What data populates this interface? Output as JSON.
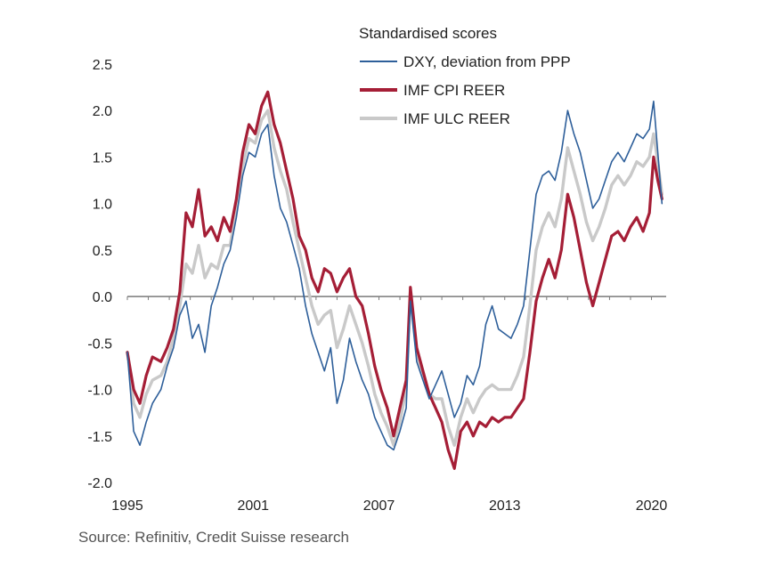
{
  "chart_data": {
    "type": "line",
    "title": "",
    "legend_title": "Standardised scores",
    "legend_position": "top-right",
    "xlabel": "",
    "ylabel": "",
    "xlim": [
      1995,
      2020.7
    ],
    "ylim": [
      -2.0,
      2.5
    ],
    "x_ticks": [
      1995,
      2001,
      2007,
      2013,
      2020
    ],
    "x_tick_labels": [
      "1995",
      "2001",
      "2007",
      "2013",
      "2020"
    ],
    "y_ticks": [
      2.5,
      2.0,
      1.5,
      1.0,
      0.5,
      0.0,
      -0.5,
      -1.0,
      -1.5,
      -2.0
    ],
    "y_tick_labels": [
      "2.5",
      "2.0",
      "1.5",
      "1.0",
      "0.5",
      "0.0",
      "-0.5",
      "-1.0",
      "-1.5",
      "-2.0"
    ],
    "grid": false,
    "zero_line": true,
    "series": [
      {
        "name": "DXY, deviation from PPP",
        "color": "#2e5f9a",
        "points": [
          [
            1995.0,
            -0.6
          ],
          [
            1995.3,
            -1.45
          ],
          [
            1995.6,
            -1.6
          ],
          [
            1995.9,
            -1.35
          ],
          [
            1996.2,
            -1.15
          ],
          [
            1996.6,
            -1.0
          ],
          [
            1996.9,
            -0.75
          ],
          [
            1997.2,
            -0.55
          ],
          [
            1997.5,
            -0.2
          ],
          [
            1997.8,
            -0.05
          ],
          [
            1998.1,
            -0.45
          ],
          [
            1998.4,
            -0.3
          ],
          [
            1998.7,
            -0.6
          ],
          [
            1999.0,
            -0.1
          ],
          [
            1999.3,
            0.1
          ],
          [
            1999.6,
            0.35
          ],
          [
            1999.9,
            0.5
          ],
          [
            2000.2,
            0.85
          ],
          [
            2000.5,
            1.3
          ],
          [
            2000.8,
            1.55
          ],
          [
            2001.1,
            1.5
          ],
          [
            2001.4,
            1.75
          ],
          [
            2001.7,
            1.85
          ],
          [
            2002.0,
            1.3
          ],
          [
            2002.3,
            0.95
          ],
          [
            2002.6,
            0.8
          ],
          [
            2002.9,
            0.55
          ],
          [
            2003.2,
            0.3
          ],
          [
            2003.5,
            -0.1
          ],
          [
            2003.8,
            -0.4
          ],
          [
            2004.1,
            -0.6
          ],
          [
            2004.4,
            -0.8
          ],
          [
            2004.7,
            -0.55
          ],
          [
            2005.0,
            -1.15
          ],
          [
            2005.3,
            -0.9
          ],
          [
            2005.6,
            -0.45
          ],
          [
            2005.9,
            -0.7
          ],
          [
            2006.2,
            -0.9
          ],
          [
            2006.5,
            -1.05
          ],
          [
            2006.8,
            -1.3
          ],
          [
            2007.1,
            -1.45
          ],
          [
            2007.4,
            -1.6
          ],
          [
            2007.7,
            -1.65
          ],
          [
            2008.0,
            -1.45
          ],
          [
            2008.3,
            -1.2
          ],
          [
            2008.5,
            -0.05
          ],
          [
            2008.8,
            -0.7
          ],
          [
            2009.1,
            -0.9
          ],
          [
            2009.4,
            -1.1
          ],
          [
            2009.7,
            -0.95
          ],
          [
            2010.0,
            -0.8
          ],
          [
            2010.3,
            -1.05
          ],
          [
            2010.6,
            -1.3
          ],
          [
            2010.9,
            -1.15
          ],
          [
            2011.2,
            -0.85
          ],
          [
            2011.5,
            -0.95
          ],
          [
            2011.8,
            -0.75
          ],
          [
            2012.1,
            -0.3
          ],
          [
            2012.4,
            -0.1
          ],
          [
            2012.7,
            -0.35
          ],
          [
            2013.0,
            -0.4
          ],
          [
            2013.3,
            -0.45
          ],
          [
            2013.6,
            -0.3
          ],
          [
            2013.9,
            -0.1
          ],
          [
            2014.2,
            0.5
          ],
          [
            2014.5,
            1.1
          ],
          [
            2014.8,
            1.3
          ],
          [
            2015.1,
            1.35
          ],
          [
            2015.4,
            1.25
          ],
          [
            2015.7,
            1.55
          ],
          [
            2016.0,
            2.0
          ],
          [
            2016.3,
            1.75
          ],
          [
            2016.6,
            1.55
          ],
          [
            2016.9,
            1.25
          ],
          [
            2017.2,
            0.95
          ],
          [
            2017.5,
            1.05
          ],
          [
            2017.8,
            1.25
          ],
          [
            2018.1,
            1.45
          ],
          [
            2018.4,
            1.55
          ],
          [
            2018.7,
            1.45
          ],
          [
            2019.0,
            1.6
          ],
          [
            2019.3,
            1.75
          ],
          [
            2019.6,
            1.7
          ],
          [
            2019.9,
            1.8
          ],
          [
            2020.1,
            2.1
          ],
          [
            2020.3,
            1.55
          ],
          [
            2020.5,
            1.0
          ]
        ]
      },
      {
        "name": "IMF CPI REER",
        "color": "#a51e36",
        "points": [
          [
            1995.0,
            -0.6
          ],
          [
            1995.3,
            -1.0
          ],
          [
            1995.6,
            -1.15
          ],
          [
            1995.9,
            -0.85
          ],
          [
            1996.2,
            -0.65
          ],
          [
            1996.6,
            -0.7
          ],
          [
            1996.9,
            -0.55
          ],
          [
            1997.2,
            -0.35
          ],
          [
            1997.5,
            0.05
          ],
          [
            1997.8,
            0.9
          ],
          [
            1998.1,
            0.75
          ],
          [
            1998.4,
            1.15
          ],
          [
            1998.7,
            0.65
          ],
          [
            1999.0,
            0.75
          ],
          [
            1999.3,
            0.6
          ],
          [
            1999.6,
            0.85
          ],
          [
            1999.9,
            0.7
          ],
          [
            2000.2,
            1.05
          ],
          [
            2000.5,
            1.55
          ],
          [
            2000.8,
            1.85
          ],
          [
            2001.1,
            1.75
          ],
          [
            2001.4,
            2.05
          ],
          [
            2001.7,
            2.2
          ],
          [
            2002.0,
            1.85
          ],
          [
            2002.3,
            1.65
          ],
          [
            2002.6,
            1.35
          ],
          [
            2002.9,
            1.05
          ],
          [
            2003.2,
            0.65
          ],
          [
            2003.5,
            0.5
          ],
          [
            2003.8,
            0.2
          ],
          [
            2004.1,
            0.05
          ],
          [
            2004.4,
            0.3
          ],
          [
            2004.7,
            0.25
          ],
          [
            2005.0,
            0.05
          ],
          [
            2005.3,
            0.2
          ],
          [
            2005.6,
            0.3
          ],
          [
            2005.9,
            0.0
          ],
          [
            2006.2,
            -0.1
          ],
          [
            2006.5,
            -0.4
          ],
          [
            2006.8,
            -0.75
          ],
          [
            2007.1,
            -1.0
          ],
          [
            2007.4,
            -1.2
          ],
          [
            2007.7,
            -1.5
          ],
          [
            2008.0,
            -1.2
          ],
          [
            2008.3,
            -0.9
          ],
          [
            2008.5,
            0.1
          ],
          [
            2008.8,
            -0.55
          ],
          [
            2009.1,
            -0.8
          ],
          [
            2009.4,
            -1.05
          ],
          [
            2009.7,
            -1.2
          ],
          [
            2010.0,
            -1.35
          ],
          [
            2010.3,
            -1.65
          ],
          [
            2010.6,
            -1.85
          ],
          [
            2010.9,
            -1.45
          ],
          [
            2011.2,
            -1.35
          ],
          [
            2011.5,
            -1.5
          ],
          [
            2011.8,
            -1.35
          ],
          [
            2012.1,
            -1.4
          ],
          [
            2012.4,
            -1.3
          ],
          [
            2012.7,
            -1.35
          ],
          [
            2013.0,
            -1.3
          ],
          [
            2013.3,
            -1.3
          ],
          [
            2013.6,
            -1.2
          ],
          [
            2013.9,
            -1.1
          ],
          [
            2014.2,
            -0.6
          ],
          [
            2014.5,
            -0.05
          ],
          [
            2014.8,
            0.2
          ],
          [
            2015.1,
            0.4
          ],
          [
            2015.4,
            0.2
          ],
          [
            2015.7,
            0.5
          ],
          [
            2016.0,
            1.1
          ],
          [
            2016.3,
            0.85
          ],
          [
            2016.6,
            0.5
          ],
          [
            2016.9,
            0.15
          ],
          [
            2017.2,
            -0.1
          ],
          [
            2017.5,
            0.15
          ],
          [
            2017.8,
            0.4
          ],
          [
            2018.1,
            0.65
          ],
          [
            2018.4,
            0.7
          ],
          [
            2018.7,
            0.6
          ],
          [
            2019.0,
            0.75
          ],
          [
            2019.3,
            0.85
          ],
          [
            2019.6,
            0.7
          ],
          [
            2019.9,
            0.9
          ],
          [
            2020.1,
            1.5
          ],
          [
            2020.3,
            1.25
          ],
          [
            2020.5,
            1.05
          ]
        ]
      },
      {
        "name": "IMF ULC REER",
        "color": "#c9c9c9",
        "points": [
          [
            1995.0,
            -0.6
          ],
          [
            1995.3,
            -1.15
          ],
          [
            1995.6,
            -1.3
          ],
          [
            1995.9,
            -1.05
          ],
          [
            1996.2,
            -0.9
          ],
          [
            1996.6,
            -0.85
          ],
          [
            1996.9,
            -0.7
          ],
          [
            1997.2,
            -0.45
          ],
          [
            1997.5,
            -0.1
          ],
          [
            1997.8,
            0.35
          ],
          [
            1998.1,
            0.25
          ],
          [
            1998.4,
            0.55
          ],
          [
            1998.7,
            0.2
          ],
          [
            1999.0,
            0.35
          ],
          [
            1999.3,
            0.3
          ],
          [
            1999.6,
            0.55
          ],
          [
            1999.9,
            0.55
          ],
          [
            2000.2,
            0.95
          ],
          [
            2000.5,
            1.4
          ],
          [
            2000.8,
            1.7
          ],
          [
            2001.1,
            1.65
          ],
          [
            2001.4,
            1.9
          ],
          [
            2001.7,
            2.0
          ],
          [
            2002.0,
            1.6
          ],
          [
            2002.3,
            1.35
          ],
          [
            2002.6,
            1.15
          ],
          [
            2002.9,
            0.8
          ],
          [
            2003.2,
            0.5
          ],
          [
            2003.5,
            0.2
          ],
          [
            2003.8,
            -0.1
          ],
          [
            2004.1,
            -0.3
          ],
          [
            2004.4,
            -0.2
          ],
          [
            2004.7,
            -0.15
          ],
          [
            2005.0,
            -0.55
          ],
          [
            2005.3,
            -0.35
          ],
          [
            2005.6,
            -0.1
          ],
          [
            2005.9,
            -0.3
          ],
          [
            2006.2,
            -0.5
          ],
          [
            2006.5,
            -0.75
          ],
          [
            2006.8,
            -1.05
          ],
          [
            2007.1,
            -1.25
          ],
          [
            2007.4,
            -1.4
          ],
          [
            2007.7,
            -1.6
          ],
          [
            2008.0,
            -1.35
          ],
          [
            2008.3,
            -1.0
          ],
          [
            2008.5,
            0.05
          ],
          [
            2008.8,
            -0.6
          ],
          [
            2009.1,
            -0.85
          ],
          [
            2009.4,
            -1.05
          ],
          [
            2009.7,
            -1.1
          ],
          [
            2010.0,
            -1.1
          ],
          [
            2010.3,
            -1.4
          ],
          [
            2010.6,
            -1.6
          ],
          [
            2010.9,
            -1.3
          ],
          [
            2011.2,
            -1.1
          ],
          [
            2011.5,
            -1.25
          ],
          [
            2011.8,
            -1.1
          ],
          [
            2012.1,
            -1.0
          ],
          [
            2012.4,
            -0.95
          ],
          [
            2012.7,
            -1.0
          ],
          [
            2013.0,
            -1.0
          ],
          [
            2013.3,
            -1.0
          ],
          [
            2013.6,
            -0.85
          ],
          [
            2013.9,
            -0.65
          ],
          [
            2014.2,
            -0.1
          ],
          [
            2014.5,
            0.5
          ],
          [
            2014.8,
            0.75
          ],
          [
            2015.1,
            0.9
          ],
          [
            2015.4,
            0.75
          ],
          [
            2015.7,
            1.05
          ],
          [
            2016.0,
            1.6
          ],
          [
            2016.3,
            1.35
          ],
          [
            2016.6,
            1.1
          ],
          [
            2016.9,
            0.8
          ],
          [
            2017.2,
            0.6
          ],
          [
            2017.5,
            0.75
          ],
          [
            2017.8,
            0.95
          ],
          [
            2018.1,
            1.2
          ],
          [
            2018.4,
            1.3
          ],
          [
            2018.7,
            1.2
          ],
          [
            2019.0,
            1.3
          ],
          [
            2019.3,
            1.45
          ],
          [
            2019.6,
            1.4
          ],
          [
            2019.9,
            1.5
          ],
          [
            2020.1,
            1.75
          ],
          [
            2020.3,
            1.45
          ],
          [
            2020.5,
            1.1
          ]
        ]
      }
    ]
  },
  "source_text": "Source: Refinitiv, Credit Suisse research"
}
